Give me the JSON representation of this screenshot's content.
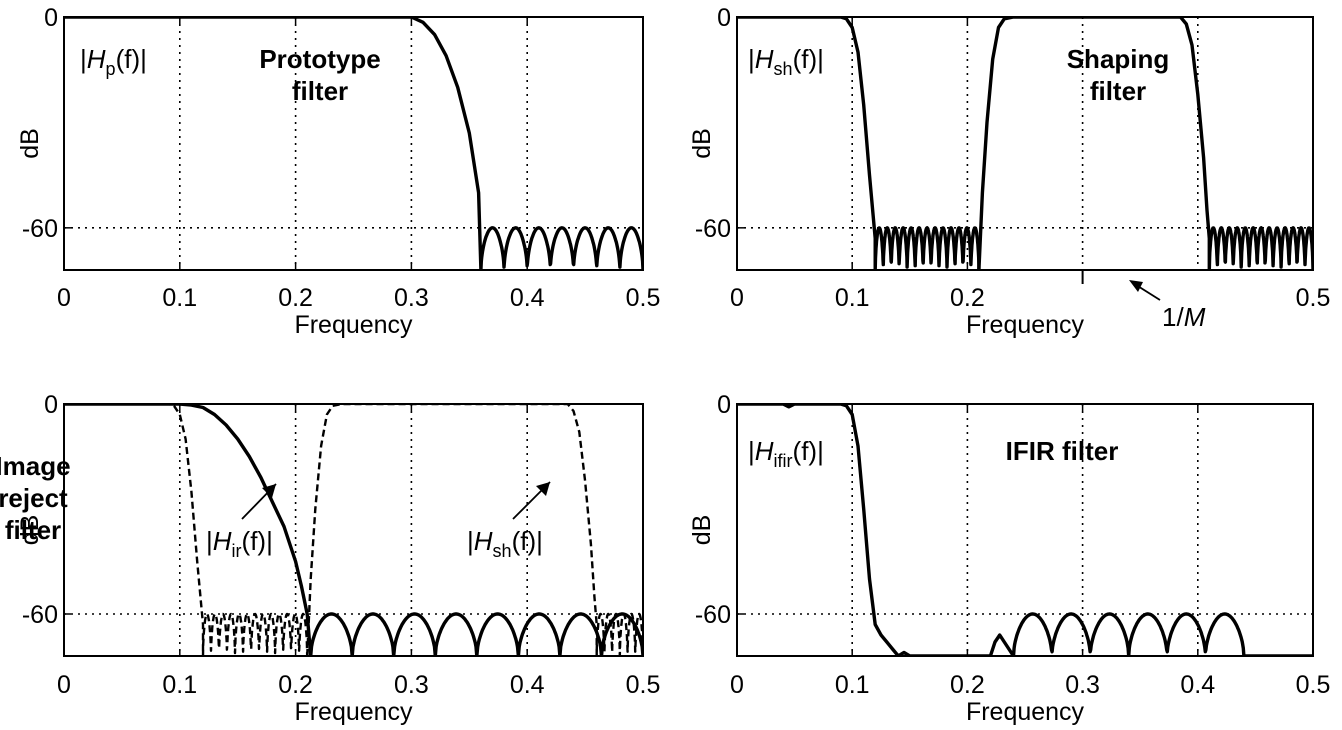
{
  "chart_data": [
    {
      "type": "line",
      "title_lines": [
        "Prototype",
        "filter"
      ],
      "xlabel": "Frequency",
      "ylabel": "dB",
      "xlim": [
        0,
        0.5
      ],
      "ylim": [
        -72,
        0
      ],
      "xticks": [
        0,
        0.1,
        0.2,
        0.3,
        0.4,
        0.5
      ],
      "xtick_labels": [
        "0",
        "0.1",
        "0.2",
        "0.3",
        "0.4",
        "0.5"
      ],
      "yticks": [
        0,
        -60
      ],
      "ytick_labels": [
        "0",
        "-60"
      ],
      "grid": true,
      "annotations": [
        {
          "label": "|H_p(f)|",
          "main": "H",
          "sub": "p",
          "pre": "|",
          "post": "(f)|"
        }
      ],
      "series": [
        {
          "style": "solid",
          "x": [
            0,
            0.3,
            0.31,
            0.32,
            0.33,
            0.34,
            0.35,
            0.358,
            0.36
          ],
          "y": [
            0,
            0,
            -1.5,
            -5,
            -11,
            -20,
            -33,
            -50,
            -72
          ],
          "stopband": {
            "x0": 0.36,
            "x1": 0.5,
            "lobes": 7,
            "top": -60,
            "bottom": -72
          }
        }
      ]
    },
    {
      "type": "line",
      "title_lines": [
        "Shaping",
        "filter"
      ],
      "xlabel": "Frequency",
      "ylabel": "dB",
      "xlim": [
        0,
        0.5
      ],
      "ylim": [
        -72,
        0
      ],
      "xticks": [
        0,
        0.1,
        0.2,
        0.5
      ],
      "xtick_labels": [
        "0",
        "0.1",
        "0.2",
        "0.5"
      ],
      "grid_x": [
        0.1,
        0.2,
        0.3,
        0.4
      ],
      "yticks": [
        0,
        -60
      ],
      "ytick_labels": [
        "0",
        "-60"
      ],
      "grid": true,
      "annotations": [
        {
          "label": "|H_sh(f)|",
          "main": "H",
          "sub": "sh",
          "pre": "|",
          "post": "(f)|"
        }
      ],
      "marker": {
        "x": 0.3,
        "label": "1/M",
        "pre": "1/",
        "var": "M"
      },
      "series": [
        {
          "style": "solid",
          "x": [
            0,
            0.09,
            0.095,
            0.1,
            0.105,
            0.11,
            0.115,
            0.12
          ],
          "y": [
            0,
            0,
            -0.5,
            -3,
            -10,
            -25,
            -45,
            -63
          ],
          "stopband": {
            "x0": 0.12,
            "x1": 0.21,
            "lobes": 13,
            "top": -60,
            "bottom": -72
          }
        },
        {
          "style": "solid",
          "x": [
            0.21,
            0.213,
            0.217,
            0.222,
            0.227,
            0.232,
            0.24,
            0.385,
            0.39,
            0.395,
            0.4,
            0.405,
            0.408,
            0.41
          ],
          "y": [
            -72,
            -50,
            -30,
            -12,
            -3,
            -0.5,
            0,
            0,
            -2,
            -8,
            -22,
            -40,
            -55,
            -63
          ],
          "stopband": {
            "x0": 0.41,
            "x1": 0.5,
            "lobes": 13,
            "top": -60,
            "bottom": -72
          }
        }
      ]
    },
    {
      "type": "line",
      "title_lines": [
        "Image",
        "reject",
        "filter"
      ],
      "xlabel": "Frequency",
      "ylabel": "dB",
      "xlim": [
        0,
        0.5
      ],
      "ylim": [
        -72,
        0
      ],
      "xticks": [
        0,
        0.1,
        0.2,
        0.3,
        0.4,
        0.5
      ],
      "xtick_labels": [
        "0",
        "0.1",
        "0.2",
        "0.3",
        "0.4",
        "0.5"
      ],
      "yticks": [
        0,
        -60
      ],
      "ytick_labels": [
        "0",
        "-60"
      ],
      "grid": true,
      "annotations": [
        {
          "label": "|H_ir(f)|",
          "main": "H",
          "sub": "ir",
          "pre": "|",
          "post": "(f)|"
        },
        {
          "label": "|H_sh(f)|",
          "main": "H",
          "sub": "sh",
          "pre": "|",
          "post": "(f)|"
        }
      ],
      "series": [
        {
          "name": "|H_ir(f)|",
          "style": "solid",
          "x": [
            0,
            0.1,
            0.11,
            0.12,
            0.13,
            0.14,
            0.15,
            0.16,
            0.17,
            0.18,
            0.19,
            0.2,
            0.205,
            0.21,
            0.213
          ],
          "y": [
            0,
            0,
            -0.3,
            -1,
            -3,
            -6,
            -10,
            -15,
            -21,
            -28,
            -35,
            -45,
            -52,
            -60,
            -72
          ],
          "stopband": {
            "x0": 0.213,
            "x1": 0.5,
            "lobes": 8,
            "top": -60,
            "bottom": -72
          }
        },
        {
          "name": "|H_sh(f)|",
          "style": "dashed",
          "x": [
            0,
            0.09,
            0.095,
            0.1,
            0.105,
            0.11,
            0.115,
            0.12
          ],
          "y": [
            0,
            0,
            -0.5,
            -3,
            -10,
            -25,
            -45,
            -63
          ],
          "stopband": {
            "x0": 0.12,
            "x1": 0.21,
            "lobes": 13,
            "top": -60,
            "bottom": -72
          }
        },
        {
          "name": "|H_sh(f)|",
          "style": "dashed",
          "x": [
            0.21,
            0.213,
            0.217,
            0.222,
            0.227,
            0.232,
            0.24,
            0.435,
            0.44,
            0.445,
            0.45,
            0.455,
            0.458,
            0.46
          ],
          "y": [
            -72,
            -50,
            -30,
            -12,
            -3,
            -0.5,
            0,
            0,
            -2,
            -8,
            -22,
            -40,
            -55,
            -63
          ],
          "stopband": {
            "x0": 0.46,
            "x1": 0.5,
            "lobes": 6,
            "top": -60,
            "bottom": -72
          }
        }
      ]
    },
    {
      "type": "line",
      "title_lines": [
        "IFIR filter"
      ],
      "xlabel": "Frequency",
      "ylabel": "dB",
      "xlim": [
        0,
        0.5
      ],
      "ylim": [
        -72,
        0
      ],
      "xticks": [
        0,
        0.1,
        0.2,
        0.3,
        0.4,
        0.5
      ],
      "xtick_labels": [
        "0",
        "0.1",
        "0.2",
        "0.3",
        "0.4",
        "0.5"
      ],
      "yticks": [
        0,
        -60
      ],
      "ytick_labels": [
        "0",
        "-60"
      ],
      "grid": true,
      "annotations": [
        {
          "label": "|H_ifir(f)|",
          "main": "H",
          "sub": "ifir",
          "pre": "|",
          "post": "(f)|"
        }
      ],
      "series": [
        {
          "style": "solid",
          "x": [
            0,
            0.04,
            0.045,
            0.05,
            0.09,
            0.095,
            0.1,
            0.105,
            0.11,
            0.115,
            0.12,
            0.125,
            0.13,
            0.135,
            0.14,
            0.145,
            0.15,
            0.16,
            0.22,
            0.224,
            0.228,
            0.232,
            0.24
          ],
          "y": [
            0,
            0,
            -0.8,
            0,
            0,
            -0.5,
            -3,
            -12,
            -30,
            -50,
            -63,
            -66,
            -68,
            -70,
            -72,
            -71,
            -72,
            -72,
            -72,
            -68,
            -66,
            -68,
            -72
          ],
          "stopband": {
            "x0": 0.24,
            "x1": 0.44,
            "lobes": 6,
            "top": -60,
            "bottom": -72
          }
        },
        {
          "style": "solid",
          "x": [
            0.44,
            0.5
          ],
          "y": [
            -72,
            -72
          ]
        }
      ]
    }
  ]
}
